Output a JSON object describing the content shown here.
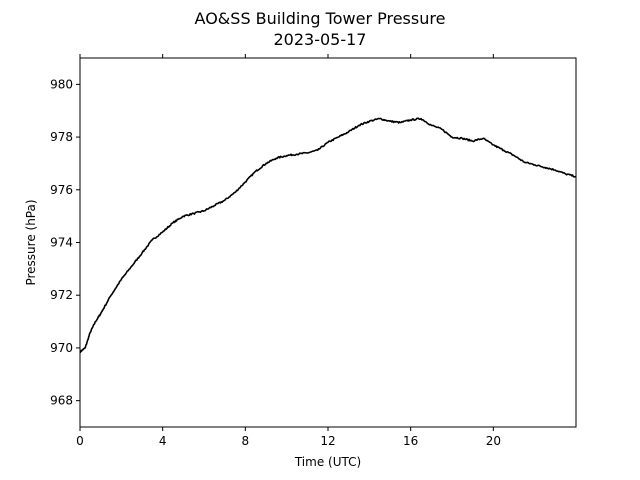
{
  "chart_data": {
    "type": "line",
    "title": "AO&SS Building Tower Pressure",
    "subtitle": "2023-05-17",
    "xlabel": "Time (UTC)",
    "ylabel": "Pressure (hPa)",
    "xlim": [
      0,
      24
    ],
    "ylim": [
      967,
      981
    ],
    "xticks": [
      0,
      4,
      8,
      12,
      16,
      20
    ],
    "yticks": [
      968,
      970,
      972,
      974,
      976,
      978,
      980
    ],
    "grid": false,
    "line_color": "#000000",
    "series": [
      {
        "x": [
          0,
          0.25,
          0.5,
          0.75,
          1,
          1.5,
          2,
          2.5,
          3,
          3.5,
          4,
          4.5,
          5,
          5.5,
          6,
          6.5,
          7,
          7.5,
          8,
          8.5,
          9,
          9.5,
          10,
          10.5,
          11,
          11.5,
          12,
          12.5,
          13,
          13.5,
          14,
          14.5,
          15,
          15.5,
          16,
          16.5,
          17,
          17.5,
          18,
          18.5,
          19,
          19.5,
          20,
          20.5,
          21,
          21.5,
          22,
          22.5,
          23,
          23.5,
          24
        ],
        "y": [
          969.85,
          970.0,
          970.6,
          971.0,
          971.3,
          972.0,
          972.6,
          973.1,
          973.6,
          974.1,
          974.4,
          974.75,
          975.0,
          975.1,
          975.2,
          975.4,
          975.6,
          975.9,
          976.3,
          976.7,
          977.0,
          977.2,
          977.3,
          977.35,
          977.4,
          977.5,
          977.8,
          978.0,
          978.2,
          978.45,
          978.6,
          978.7,
          978.6,
          978.55,
          978.65,
          978.7,
          978.45,
          978.3,
          978.0,
          977.95,
          977.85,
          977.95,
          977.7,
          977.5,
          977.3,
          977.05,
          976.95,
          976.85,
          976.75,
          976.6,
          976.5
        ]
      }
    ]
  }
}
